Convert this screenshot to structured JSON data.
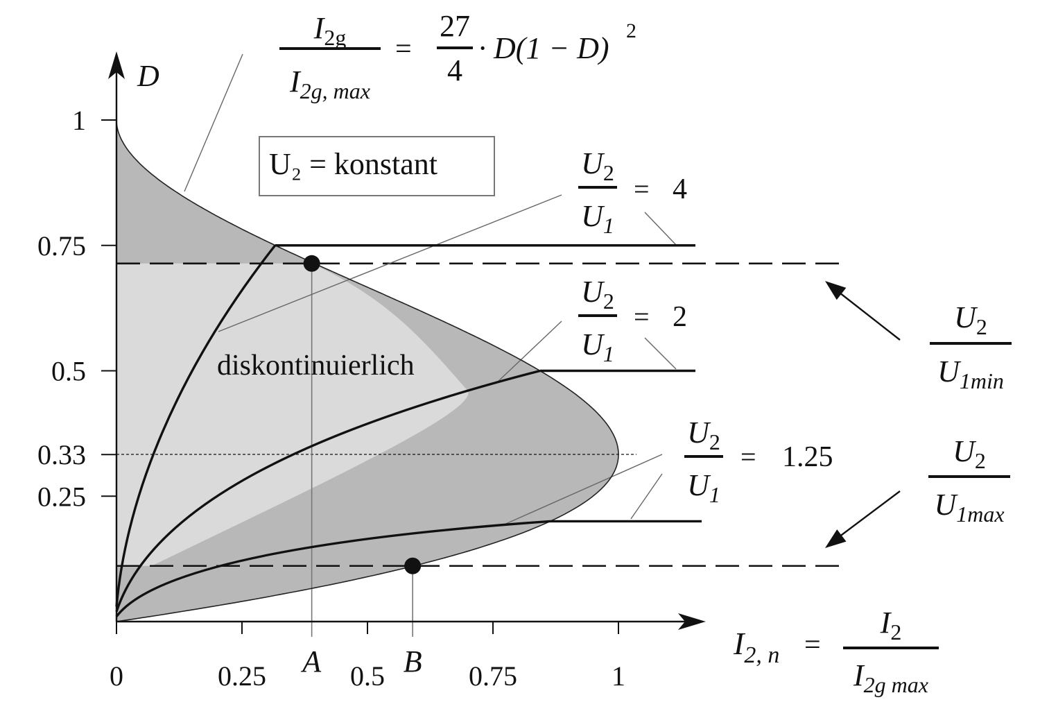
{
  "chart_data": {
    "type": "area",
    "constant_label": "U₂ = konstant",
    "region_label": "diskontinuierlich",
    "boundary_formula": {
      "lhs_num": "I",
      "lhs_num_sub": "2g",
      "lhs_den": "I",
      "lhs_den_sub": "2g, max",
      "equals": "=",
      "coef_num": "27",
      "coef_den": "4",
      "expr": "· D(1 − D)",
      "exp": "2"
    },
    "xaxis": {
      "symbol": "I",
      "symbol_sub": "2, n",
      "equals": "=",
      "frac_num": "I",
      "frac_num_sub": "2",
      "frac_den": "I",
      "frac_den_sub": "2g max",
      "ticks": [
        {
          "value": 0,
          "label": "0"
        },
        {
          "value": 0.25,
          "label": "0.25"
        },
        {
          "value": 0.5,
          "label": "0.5"
        },
        {
          "value": 0.75,
          "label": "0.75"
        },
        {
          "value": 1,
          "label": "1"
        }
      ],
      "range": [
        0,
        1.15
      ]
    },
    "yaxis": {
      "label": "D",
      "ticks": [
        {
          "value": 1,
          "label": "1"
        },
        {
          "value": 0.75,
          "label": "0.75"
        },
        {
          "value": 0.5,
          "label": "0.5"
        },
        {
          "value": 0.333,
          "label": "0.33"
        },
        {
          "value": 0.25,
          "label": "0.25"
        }
      ],
      "range": [
        0,
        1
      ]
    },
    "series": [
      {
        "ratio_num": "U",
        "ratio_num_sub": "2",
        "ratio_den": "U",
        "ratio_den_sub": "1",
        "value": "4",
        "D_ccm": 0.75,
        "x_boundary": 0.316
      },
      {
        "ratio_num": "U",
        "ratio_num_sub": "2",
        "ratio_den": "U",
        "ratio_den_sub": "1",
        "value": "2",
        "D_ccm": 0.5,
        "x_boundary": 0.844
      },
      {
        "ratio_num": "U",
        "ratio_num_sub": "2",
        "ratio_den": "U",
        "ratio_den_sub": "1",
        "value": "1.25",
        "D_ccm": 0.2,
        "x_boundary": 0.864
      }
    ],
    "limits": [
      {
        "name_num": "U",
        "name_num_sub": "2",
        "name_den": "U",
        "name_den_sub": "1min",
        "D": 0.714
      },
      {
        "name_num": "U",
        "name_num_sub": "2",
        "name_den": "U",
        "name_den_sub": "1max",
        "D": 0.111
      }
    ],
    "points": [
      {
        "label": "A",
        "x": 0.389,
        "D": 0.714
      },
      {
        "label": "B",
        "x": 0.59,
        "D": 0.111
      }
    ]
  }
}
